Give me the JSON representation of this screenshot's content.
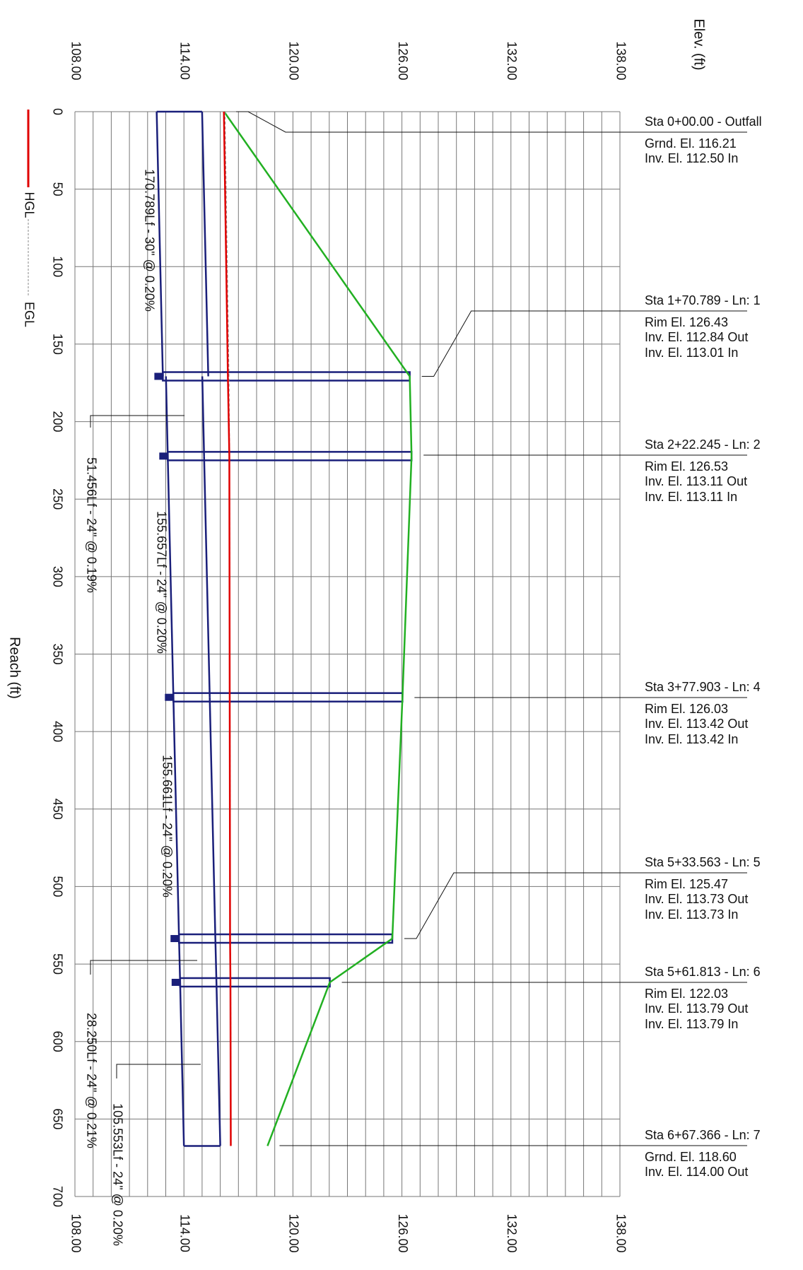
{
  "chart_data": {
    "type": "profile",
    "x_label": "Reach (ft)",
    "y_label": "Elev. (ft)",
    "xlim": [
      0,
      700
    ],
    "xticks": [
      0,
      50,
      100,
      150,
      200,
      250,
      300,
      350,
      400,
      450,
      500,
      550,
      600,
      650,
      700
    ],
    "ylim": [
      108,
      138
    ],
    "yticks": [
      {
        "value": 108,
        "label": "108.00"
      },
      {
        "value": 114,
        "label": "114.00"
      },
      {
        "value": 120,
        "label": "120.00"
      },
      {
        "value": 126,
        "label": "126.00"
      },
      {
        "value": 132,
        "label": "132.00"
      },
      {
        "value": 138,
        "label": "138.00"
      }
    ],
    "y_minor_ticks": [
      108,
      109,
      110,
      111,
      112,
      113,
      114,
      115,
      116,
      117,
      118,
      119,
      120,
      121,
      122,
      123,
      124,
      125,
      126,
      127,
      128,
      129,
      130,
      131,
      132,
      133,
      134,
      135,
      136,
      137,
      138
    ],
    "grid": true,
    "series": [
      {
        "name": "HGL",
        "color": "#e00000",
        "dashed": false,
        "x": [
          0,
          170.789,
          222.245,
          377.903,
          533.563,
          561.813,
          667.366
        ],
        "values": [
          116.2,
          116.42,
          116.5,
          116.52,
          116.54,
          116.56,
          116.58
        ]
      },
      {
        "name": "EGL",
        "color": "#888888",
        "dashed": true,
        "x": [
          0,
          170.789,
          222.245,
          377.903,
          533.563,
          561.813,
          667.366
        ],
        "values": [
          116.26,
          116.48,
          116.52,
          116.54,
          116.56,
          116.58,
          116.6
        ]
      }
    ],
    "ground": {
      "color": "#22b022"
    },
    "pipe_color": "#1a1f7a",
    "structures": [
      {
        "reach": 0,
        "top": 116.21,
        "inv_out": null,
        "inv_in": 112.5,
        "lines": [
          "Sta 0+00.00 - Outfall",
          "Grnd. El. 116.21",
          "Inv. El. 112.50 In"
        ]
      },
      {
        "reach": 170.789,
        "top": 126.43,
        "inv_out": 112.84,
        "inv_in": 113.01,
        "lines": [
          "Sta 1+70.789 - Ln: 1",
          "Rim El. 126.43",
          "Inv. El. 112.84 Out",
          "Inv. El. 113.01 In"
        ]
      },
      {
        "reach": 222.245,
        "top": 126.53,
        "inv_out": 113.11,
        "inv_in": 113.11,
        "lines": [
          "Sta 2+22.245 - Ln: 2",
          "Rim El. 126.53",
          "Inv. El. 113.11 Out",
          "Inv. El. 113.11 In"
        ]
      },
      {
        "reach": 377.903,
        "top": 126.03,
        "inv_out": 113.42,
        "inv_in": 113.42,
        "lines": [
          "Sta 3+77.903 - Ln: 4",
          "Rim El. 126.03",
          "Inv. El. 113.42 Out",
          "Inv. El. 113.42 In"
        ]
      },
      {
        "reach": 533.563,
        "top": 125.47,
        "inv_out": 113.73,
        "inv_in": 113.73,
        "lines": [
          "Sta 5+33.563 - Ln: 5",
          "Rim El. 125.47",
          "Inv. El. 113.73 Out",
          "Inv. El. 113.73 In"
        ]
      },
      {
        "reach": 561.813,
        "top": 122.03,
        "inv_out": 113.79,
        "inv_in": 113.79,
        "lines": [
          "Sta 5+61.813 - Ln: 6",
          "Rim El. 122.03",
          "Inv. El. 113.79 Out",
          "Inv. El. 113.79 In"
        ]
      },
      {
        "reach": 667.366,
        "top": 118.6,
        "inv_out": 114.0,
        "inv_in": null,
        "lines": [
          "Sta 6+67.366 - Ln: 7",
          "Grnd. El. 118.60",
          "Inv. El. 114.00 Out"
        ]
      }
    ],
    "pipes": [
      {
        "label": "170.789Lf - 30\" @ 0.20%",
        "size_in": 30
      },
      {
        "label": "51.456Lf - 24\" @ 0.19%",
        "size_in": 24
      },
      {
        "label": "155.657Lf - 24\" @ 0.20%",
        "size_in": 24
      },
      {
        "label": "155.661Lf - 24\" @ 0.20%",
        "size_in": 24
      },
      {
        "label": "28.250Lf - 24\" @ 0.21%",
        "size_in": 24
      },
      {
        "label": "105.553Lf - 24\" @ 0.20%",
        "size_in": 24
      }
    ]
  }
}
